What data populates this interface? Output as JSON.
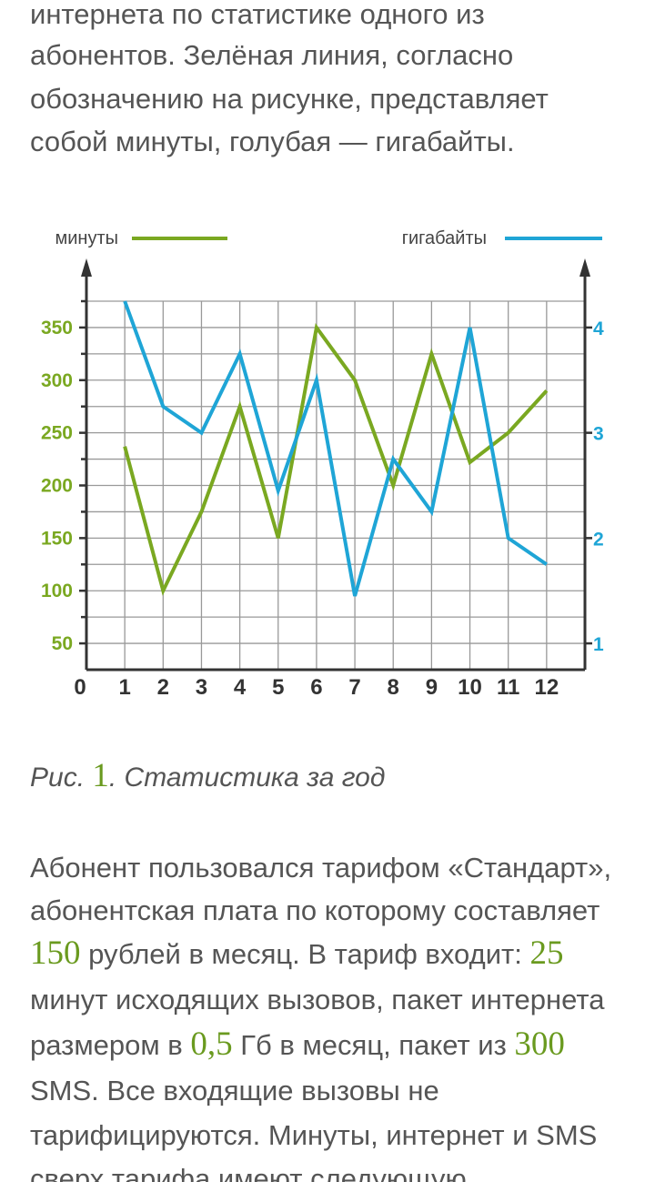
{
  "intro": {
    "lines": [
      "интернета по статистике одного из",
      "абонентов. Зелёная линия, согласно",
      "обозначению на рисунке, представляет",
      "собой минуты, голубая — гигабайты."
    ]
  },
  "chart_data": {
    "type": "line",
    "x": [
      1,
      2,
      3,
      4,
      5,
      6,
      7,
      8,
      9,
      10,
      11,
      12
    ],
    "xlim": [
      0,
      13
    ],
    "xticks": [
      0,
      1,
      2,
      3,
      4,
      5,
      6,
      7,
      8,
      9,
      10,
      11,
      12
    ],
    "ylim": [
      25,
      375
    ],
    "yticks": [
      50,
      100,
      150,
      200,
      250,
      300,
      350
    ],
    "yminorticks": [
      75,
      125,
      175,
      225,
      275,
      325,
      375
    ],
    "y2lim": [
      0.75,
      4.25
    ],
    "y2ticks": [
      1,
      2,
      3,
      4
    ],
    "grid": true,
    "series": [
      {
        "name": "минуты",
        "color": "#7aa821",
        "values": [
          237,
          100,
          175,
          275,
          150,
          350,
          300,
          200,
          325,
          222,
          250,
          290
        ]
      },
      {
        "name": "гигабайты",
        "color": "#1fa5d6",
        "axis": "y2",
        "values": [
          4.25,
          3.25,
          3,
          3.75,
          2.45,
          3.5,
          1.45,
          2.75,
          2.25,
          4,
          2,
          1.75
        ]
      }
    ]
  },
  "caption": {
    "prefix": "Рис. ",
    "number": "1",
    "text": ". Статистика за год"
  },
  "paragraph": {
    "lines": [
      [
        "Абонент пользовался тарифом «Стандарт»,"
      ],
      [
        "абонентская плата по которому составляет"
      ],
      [
        {
          "num": "150"
        },
        " рублей в месяц. В тариф входит: ",
        {
          "num": "25"
        }
      ],
      [
        "минут исходящих вызовов, пакет интернета"
      ],
      [
        "размером в ",
        {
          "num": "0,5"
        },
        " Гб в месяц, пакет из ",
        {
          "num": "300"
        }
      ],
      [
        "SMS. Все входящие вызовы не"
      ],
      [
        "тарифицируются. Минуты, интернет и SMS"
      ],
      [
        "сверх тарифа имеют следующую"
      ]
    ]
  }
}
